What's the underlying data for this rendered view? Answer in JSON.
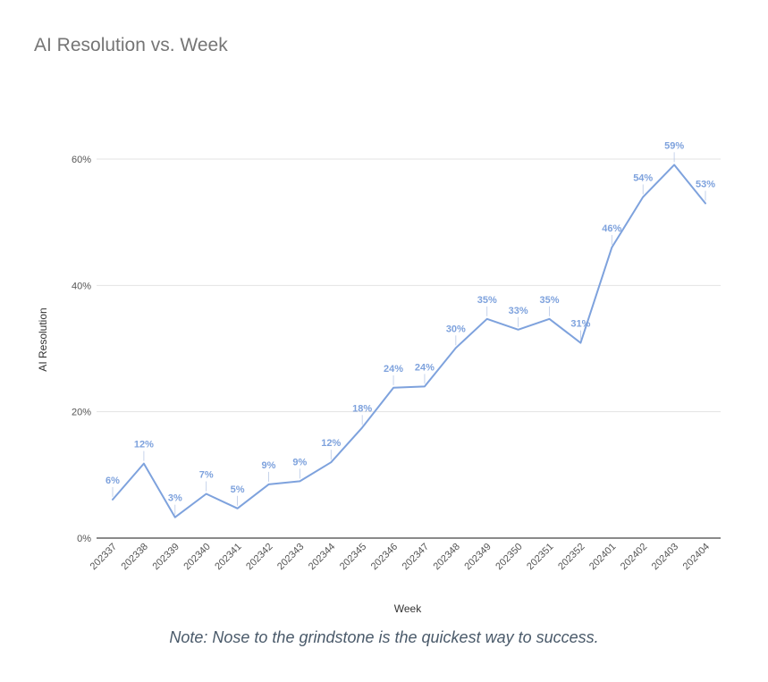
{
  "note": "Note: Nose to the grindstone is the quickest way to success.",
  "chart_data": {
    "type": "line",
    "title": "AI Resolution vs. Week",
    "xlabel": "Week",
    "ylabel": "AI Resolution",
    "ylim": [
      0,
      60
    ],
    "yticks": [
      0,
      20,
      40,
      60
    ],
    "ytick_labels": [
      "0%",
      "20%",
      "40%",
      "60%"
    ],
    "grid": true,
    "color": "#7ea2dd",
    "categories": [
      "202337",
      "202338",
      "202339",
      "202340",
      "202341",
      "202342",
      "202343",
      "202344",
      "202345",
      "202346",
      "202347",
      "202348",
      "202349",
      "202350",
      "202351",
      "202352",
      "202401",
      "202402",
      "202403",
      "202404"
    ],
    "values": [
      6,
      12,
      3,
      7,
      5,
      9,
      9,
      12,
      18,
      24,
      24,
      30,
      35,
      33,
      35,
      31,
      46,
      54,
      59,
      53
    ],
    "plot_values": [
      6.1,
      11.8,
      3.3,
      7.0,
      4.7,
      8.5,
      9.0,
      12.0,
      17.5,
      23.8,
      24.0,
      30.1,
      34.7,
      33.0,
      34.7,
      30.9,
      46.0,
      54.0,
      59.1,
      53.0
    ],
    "data_labels": [
      "6%",
      "12%",
      "3%",
      "7%",
      "5%",
      "9%",
      "9%",
      "12%",
      "18%",
      "24%",
      "24%",
      "30%",
      "35%",
      "33%",
      "35%",
      "31%",
      "46%",
      "54%",
      "59%",
      "53%"
    ]
  }
}
